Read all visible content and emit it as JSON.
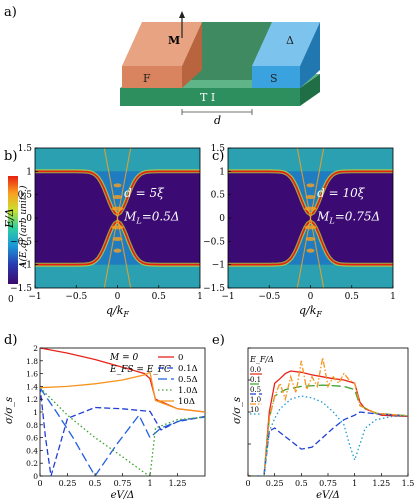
{
  "panel_labels": {
    "a": "a)",
    "b": "b)",
    "c": "c)",
    "d": "d)",
    "e": "e)"
  },
  "panel_a": {
    "label_M": "M",
    "label_F": "F",
    "label_S": "S",
    "label_delta": "Δ",
    "label_TI": "T I",
    "label_d": "d",
    "colors": {
      "ferro": "#e08a64",
      "ti": "#2e8f5e",
      "super": "#3aa2df"
    }
  },
  "colorbar": {
    "label": "A(E,q)  (arb units.)",
    "min_label": "0",
    "colors": [
      "#3a0a6a",
      "#2a3ab0",
      "#1a9ad8",
      "#30d0a0",
      "#c8e030",
      "#f8a020",
      "#e82010"
    ]
  },
  "chart_data": [
    {
      "panel": "b",
      "type": "heatmap",
      "xlabel": "q/k_F",
      "ylabel": "E/Δ",
      "xlim": [
        -1,
        1
      ],
      "ylim": [
        -1.5,
        1.5
      ],
      "xticks": [
        "−1",
        "−0.5",
        "0",
        "0.5",
        "1"
      ],
      "yticks": [
        "1.5",
        "1",
        "0.5",
        "0",
        "−0.5",
        "−1",
        "−1.5"
      ],
      "annotation_d": "d = 5ξ",
      "annotation_M": "M",
      "annotation_M_sub": "L",
      "annotation_M_val": "=0.5Δ"
    },
    {
      "panel": "c",
      "type": "heatmap",
      "xlabel": "q/k_F",
      "xlim": [
        -1,
        1
      ],
      "ylim": [
        -1.5,
        1.5
      ],
      "xticks": [
        "−1",
        "−0.5",
        "0",
        "0.5",
        "1"
      ],
      "yticks": [
        "1.5",
        "1",
        "0.5",
        "0",
        "−0.5",
        "−1",
        "−1.5"
      ],
      "annotation_d": "d = 10ξ",
      "annotation_M": "M",
      "annotation_M_sub": "L",
      "annotation_M_val": "=0.75Δ"
    },
    {
      "panel": "d",
      "type": "line",
      "xlabel": "eV/Δ",
      "ylabel": "σ/σ_s",
      "xlim": [
        0,
        1.5
      ],
      "ylim": [
        0,
        2
      ],
      "xticks": [
        "0",
        "0.25",
        "0.5",
        "0.75",
        "1",
        "1.25"
      ],
      "yticks": [
        "0",
        "0.2",
        "0.4",
        "0.6",
        "0.8",
        "1",
        "1.2",
        "1.4",
        "1.6",
        "1.8",
        "2"
      ],
      "header_line1": "M = 0",
      "header_line2": "E_FS = E_FC",
      "series": [
        {
          "name": "0",
          "color": "#e8231c",
          "dash": "solid",
          "x": [
            0,
            0.25,
            0.5,
            0.75,
            0.95,
            1.0,
            1.05,
            1.25,
            1.5
          ],
          "y": [
            2.0,
            1.92,
            1.82,
            1.7,
            1.6,
            1.52,
            1.2,
            1.05,
            1.0
          ]
        },
        {
          "name": "0.1Δ",
          "color": "#1f3fd6",
          "dash": "dash",
          "x": [
            0,
            0.05,
            0.1,
            0.25,
            0.5,
            0.75,
            1.0,
            1.1,
            1.25,
            1.5
          ],
          "y": [
            1.4,
            0.6,
            0.0,
            0.9,
            1.07,
            1.05,
            1.01,
            0.72,
            0.85,
            0.93
          ]
        },
        {
          "name": "0.5Δ",
          "color": "#2060e0",
          "dash": "longdash",
          "x": [
            0,
            0.15,
            0.3,
            0.5,
            0.7,
            0.9,
            1.0,
            1.1,
            1.3,
            1.5
          ],
          "y": [
            1.38,
            1.0,
            0.6,
            0.0,
            0.5,
            0.95,
            0.6,
            0.75,
            0.88,
            0.92
          ]
        },
        {
          "name": "1.0Δ",
          "color": "#3aa02a",
          "dash": "dot",
          "x": [
            0,
            0.25,
            0.5,
            0.75,
            0.95,
            1.0,
            1.05,
            1.25,
            1.5
          ],
          "y": [
            1.38,
            0.95,
            0.6,
            0.3,
            0.05,
            0.0,
            0.75,
            0.88,
            0.92
          ]
        },
        {
          "name": "10Δ",
          "color": "#f7941d",
          "dash": "solid",
          "x": [
            0,
            0.25,
            0.5,
            0.75,
            0.95,
            1.0,
            1.05,
            1.25,
            1.5
          ],
          "y": [
            1.38,
            1.4,
            1.44,
            1.5,
            1.58,
            1.62,
            1.18,
            1.05,
            1.0
          ]
        }
      ]
    },
    {
      "panel": "e",
      "type": "line",
      "xlabel": "eV/Δ",
      "ylabel": "σ/σ_s",
      "xlim": [
        0,
        1.5
      ],
      "ylim": [
        0,
        2
      ],
      "xticks": [
        "0",
        "0.25",
        "0.5",
        "0.75",
        "1",
        "1.25",
        "1.5"
      ],
      "legend_title": "E_F/Δ",
      "series": [
        {
          "name": "0.0",
          "color": "#e8231c",
          "dash": "solid",
          "x": [
            0,
            0.15,
            0.2,
            0.25,
            0.3,
            0.35,
            0.4,
            0.5,
            0.6,
            0.7,
            0.8,
            0.9,
            1.0,
            1.05,
            1.1,
            1.25,
            1.5
          ],
          "y": [
            0,
            0.0,
            1.0,
            1.45,
            1.52,
            1.6,
            1.64,
            1.62,
            1.58,
            1.55,
            1.52,
            1.5,
            1.45,
            1.15,
            1.05,
            0.95,
            0.93
          ]
        },
        {
          "name": "0.1",
          "color": "#3aa02a",
          "dash": "longdash",
          "x": [
            0,
            0.15,
            0.2,
            0.25,
            0.35,
            0.5,
            0.7,
            0.9,
            1.0,
            1.05,
            1.2,
            1.5
          ],
          "y": [
            0,
            0.0,
            0.9,
            1.25,
            1.35,
            1.4,
            1.42,
            1.4,
            1.35,
            1.1,
            0.98,
            0.94
          ]
        },
        {
          "name": "0.5",
          "color": "#1f3fd6",
          "dash": "dash",
          "x": [
            0,
            0.15,
            0.2,
            0.25,
            0.3,
            0.4,
            0.5,
            0.6,
            0.7,
            0.8,
            0.9,
            1.0,
            1.05,
            1.2,
            1.5
          ],
          "y": [
            0,
            0.0,
            0.7,
            0.75,
            0.68,
            0.55,
            0.42,
            0.45,
            0.6,
            0.75,
            0.88,
            0.95,
            1.0,
            0.97,
            0.94
          ]
        },
        {
          "name": "1.0",
          "color": "#f7941d",
          "dash": "dashdot",
          "x": [
            0,
            0.15,
            0.2,
            0.25,
            0.3,
            0.35,
            0.4,
            0.45,
            0.5,
            0.55,
            0.6,
            0.65,
            0.7,
            0.75,
            0.8,
            0.85,
            0.9,
            0.95,
            1.0,
            1.05,
            1.2,
            1.5
          ],
          "y": [
            0,
            0.0,
            0.9,
            1.25,
            1.45,
            1.2,
            1.55,
            1.3,
            1.8,
            1.35,
            1.55,
            1.4,
            1.85,
            1.4,
            1.55,
            1.45,
            1.6,
            1.5,
            1.45,
            1.1,
            0.98,
            0.94
          ]
        },
        {
          "name": "10",
          "color": "#1a9ad8",
          "dash": "dot",
          "x": [
            0,
            0.15,
            0.2,
            0.25,
            0.3,
            0.4,
            0.5,
            0.6,
            0.7,
            0.8,
            0.9,
            0.95,
            1.0,
            1.05,
            1.1,
            1.2,
            1.35,
            1.5
          ],
          "y": [
            0,
            0.0,
            0.7,
            0.9,
            1.05,
            1.2,
            1.25,
            1.22,
            1.15,
            1.0,
            0.8,
            0.5,
            0.25,
            0.5,
            0.75,
            0.88,
            0.93,
            0.94
          ]
        }
      ]
    }
  ]
}
